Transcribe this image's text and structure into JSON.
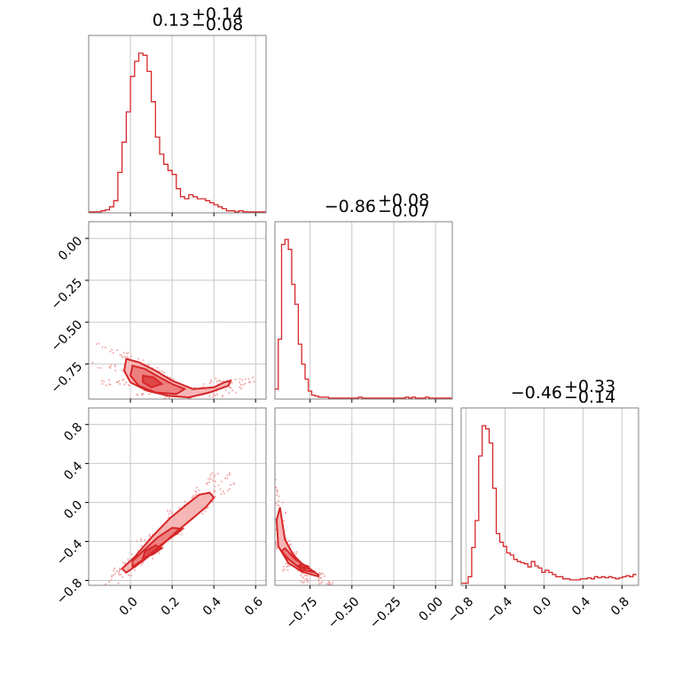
{
  "colors": {
    "line": "#d62728",
    "fill_outer": "#f6b6b6",
    "fill_mid": "#ee8080",
    "fill_inner": "#e04848",
    "points": "#f2a6a6",
    "grid": "#c8c8c8",
    "frame": "#808080"
  },
  "chart_data": {
    "type": "corner",
    "grid": true,
    "params": [
      {
        "range": [
          -0.2,
          0.65
        ],
        "ticks": [
          0.0,
          0.2,
          0.4,
          0.6
        ],
        "tick_labels": [
          "0.0",
          "0.2",
          "0.4",
          "0.6"
        ],
        "summary": {
          "median": "0.13",
          "plus": "+0.14",
          "minus": "−0.08"
        }
      },
      {
        "range": [
          -0.96,
          0.1
        ],
        "ticks": [
          -0.75,
          -0.5,
          -0.25,
          0.0
        ],
        "tick_labels": [
          "−0.75",
          "−0.50",
          "−0.25",
          "0.00"
        ],
        "summary": {
          "median": "−0.86",
          "plus": "+0.08",
          "minus": "−0.07"
        }
      },
      {
        "range": [
          -0.85,
          0.97
        ],
        "ticks": [
          -0.8,
          -0.4,
          0.0,
          0.4,
          0.8
        ],
        "tick_labels": [
          "−0.8",
          "−0.4",
          "0.0",
          "0.4",
          "0.8"
        ],
        "summary": {
          "median": "−0.46",
          "plus": "+0.33",
          "minus": "−0.14"
        }
      }
    ],
    "histograms": [
      {
        "param": 0,
        "bin_start": -0.2,
        "bin_width": 0.02,
        "counts": [
          1,
          1,
          1,
          2,
          3,
          6,
          12,
          40,
          70,
          100,
          135,
          150,
          158,
          156,
          140,
          110,
          75,
          58,
          48,
          42,
          38,
          24,
          16,
          14,
          18,
          16,
          14,
          14,
          12,
          10,
          8,
          6,
          4,
          2,
          2,
          1,
          2,
          1,
          1,
          1,
          1,
          1,
          1
        ]
      },
      {
        "param": 1,
        "bin_start": -0.96,
        "bin_width": 0.02,
        "counts": [
          10,
          60,
          155,
          160,
          150,
          115,
          95,
          55,
          35,
          20,
          8,
          4,
          3,
          2,
          2,
          2,
          1,
          1,
          1,
          1,
          1,
          1,
          1,
          1,
          1,
          2,
          1,
          1,
          1,
          1,
          1,
          1,
          1,
          1,
          1,
          1,
          1,
          1,
          1,
          2,
          1,
          2,
          1,
          1,
          1,
          2,
          1,
          1,
          1,
          1,
          1,
          1,
          1,
          1
        ]
      },
      {
        "param": 2,
        "bin_start": -0.85,
        "bin_width": 0.036,
        "counts": [
          2,
          2,
          8,
          35,
          60,
          120,
          148,
          145,
          132,
          90,
          48,
          40,
          36,
          30,
          28,
          24,
          22,
          21,
          20,
          17,
          22,
          18,
          16,
          12,
          14,
          12,
          10,
          8,
          8,
          6,
          6,
          5,
          5,
          5,
          6,
          6,
          7,
          6,
          8,
          7,
          8,
          7,
          8,
          7,
          6,
          7,
          8,
          9,
          8,
          10
        ]
      }
    ],
    "contours_2d": [
      {
        "xparam": 0,
        "yparam": 1,
        "levels": [
          [
            [
              -0.02,
              -0.72
            ],
            [
              0.04,
              -0.74
            ],
            [
              0.12,
              -0.79
            ],
            [
              0.2,
              -0.85
            ],
            [
              0.3,
              -0.9
            ],
            [
              0.4,
              -0.89
            ],
            [
              0.45,
              -0.86
            ],
            [
              0.48,
              -0.85
            ],
            [
              0.47,
              -0.88
            ],
            [
              0.38,
              -0.92
            ],
            [
              0.28,
              -0.95
            ],
            [
              0.18,
              -0.94
            ],
            [
              0.08,
              -0.91
            ],
            [
              0.0,
              -0.86
            ],
            [
              -0.03,
              -0.79
            ]
          ],
          [
            [
              0.01,
              -0.76
            ],
            [
              0.07,
              -0.78
            ],
            [
              0.14,
              -0.83
            ],
            [
              0.2,
              -0.87
            ],
            [
              0.26,
              -0.9
            ],
            [
              0.22,
              -0.93
            ],
            [
              0.12,
              -0.92
            ],
            [
              0.04,
              -0.88
            ],
            [
              0.0,
              -0.82
            ]
          ],
          [
            [
              0.06,
              -0.82
            ],
            [
              0.11,
              -0.83
            ],
            [
              0.15,
              -0.87
            ],
            [
              0.1,
              -0.89
            ],
            [
              0.06,
              -0.86
            ]
          ]
        ]
      },
      {
        "xparam": 0,
        "yparam": 2,
        "levels": [
          [
            [
              -0.02,
              -0.72
            ],
            [
              0.06,
              -0.6
            ],
            [
              0.14,
              -0.46
            ],
            [
              0.22,
              -0.3
            ],
            [
              0.3,
              -0.16
            ],
            [
              0.36,
              -0.05
            ],
            [
              0.4,
              0.05
            ],
            [
              0.38,
              0.1
            ],
            [
              0.33,
              0.08
            ],
            [
              0.27,
              -0.02
            ],
            [
              0.19,
              -0.16
            ],
            [
              0.1,
              -0.36
            ],
            [
              0.02,
              -0.56
            ],
            [
              -0.04,
              -0.68
            ]
          ],
          [
            [
              0.01,
              -0.66
            ],
            [
              0.08,
              -0.56
            ],
            [
              0.15,
              -0.43
            ],
            [
              0.22,
              -0.32
            ],
            [
              0.25,
              -0.27
            ],
            [
              0.2,
              -0.26
            ],
            [
              0.13,
              -0.36
            ],
            [
              0.06,
              -0.5
            ],
            [
              0.01,
              -0.6
            ]
          ],
          [
            [
              0.06,
              -0.57
            ],
            [
              0.11,
              -0.53
            ],
            [
              0.15,
              -0.47
            ],
            [
              0.12,
              -0.44
            ],
            [
              0.07,
              -0.5
            ]
          ]
        ]
      },
      {
        "xparam": 1,
        "yparam": 2,
        "levels": [
          [
            [
              -0.93,
              -0.05
            ],
            [
              -0.9,
              -0.38
            ],
            [
              -0.85,
              -0.54
            ],
            [
              -0.78,
              -0.66
            ],
            [
              -0.7,
              -0.74
            ],
            [
              -0.7,
              -0.76
            ],
            [
              -0.8,
              -0.71
            ],
            [
              -0.88,
              -0.62
            ],
            [
              -0.94,
              -0.45
            ],
            [
              -0.95,
              -0.18
            ]
          ],
          [
            [
              -0.9,
              -0.47
            ],
            [
              -0.84,
              -0.58
            ],
            [
              -0.76,
              -0.67
            ],
            [
              -0.72,
              -0.72
            ],
            [
              -0.8,
              -0.69
            ],
            [
              -0.88,
              -0.58
            ],
            [
              -0.92,
              -0.5
            ]
          ],
          [
            [
              -0.8,
              -0.63
            ],
            [
              -0.76,
              -0.66
            ],
            [
              -0.78,
              -0.68
            ],
            [
              -0.82,
              -0.65
            ]
          ]
        ]
      }
    ]
  }
}
